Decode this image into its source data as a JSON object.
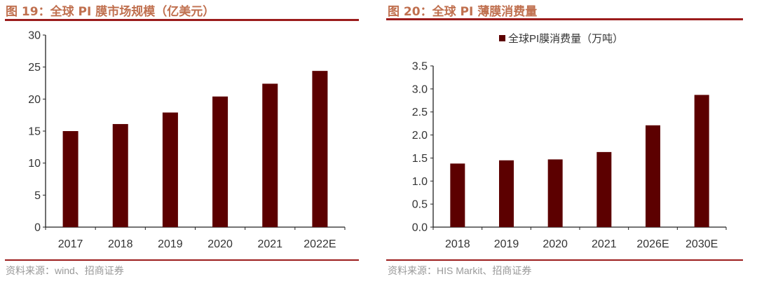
{
  "charts": [
    {
      "figure_title": "图 19：全球 PI 膜市场规模（亿美元）",
      "source": "资料来源：wind、招商证券"
    },
    {
      "figure_title": "图 20：全球 PI 薄膜消费量",
      "source": "资料来源：HIS Markit、招商证券"
    }
  ],
  "chart_data": [
    {
      "type": "bar",
      "title": "图 19：全球 PI 膜市场规模（亿美元）",
      "categories": [
        "2017",
        "2018",
        "2019",
        "2020",
        "2021",
        "2022E"
      ],
      "values": [
        15.0,
        16.1,
        17.9,
        20.4,
        22.4,
        24.4
      ],
      "ylim": [
        0,
        30
      ],
      "yticks": [
        "0",
        "5",
        "10",
        "15",
        "20",
        "25",
        "30"
      ],
      "grid": false,
      "legend": null,
      "color": "#5c0000"
    },
    {
      "type": "bar",
      "title": "图 20：全球 PI 薄膜消费量",
      "categories": [
        "2018",
        "2019",
        "2020",
        "2021",
        "2026E",
        "2030E"
      ],
      "series": [
        {
          "name": "全球PI膜消费量（万吨）",
          "values": [
            1.38,
            1.45,
            1.47,
            1.63,
            2.21,
            2.87
          ]
        }
      ],
      "ylim": [
        0,
        3.5
      ],
      "yticks": [
        "0.0",
        "0.5",
        "1.0",
        "1.5",
        "2.0",
        "2.5",
        "3.0",
        "3.5"
      ],
      "grid": false,
      "legend": "top-center",
      "color": "#5c0000"
    }
  ]
}
